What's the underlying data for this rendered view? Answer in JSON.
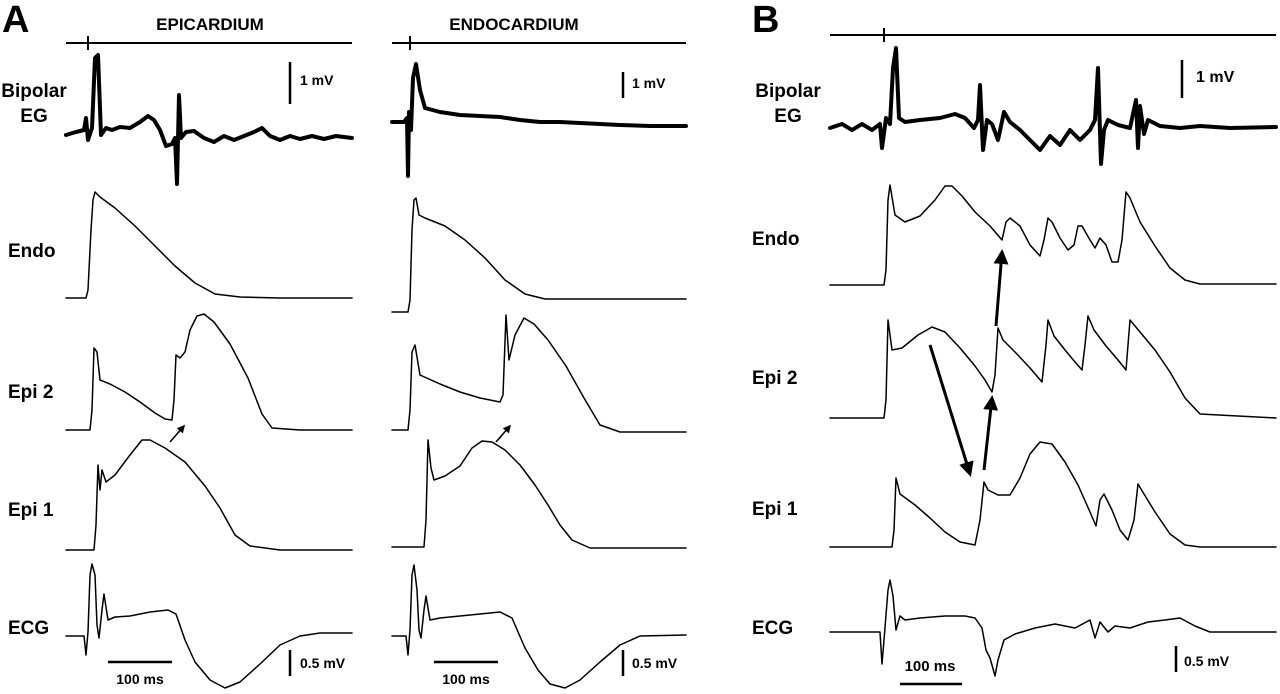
{
  "panels": {
    "A": {
      "letter": "A",
      "epicardium_title": "EPICARDIUM",
      "endocardium_title": "ENDOCARDIUM"
    },
    "B": {
      "letter": "B"
    }
  },
  "row_labels": {
    "bipolar_line1": "Bipolar",
    "bipolar_line2": "EG",
    "endo": "Endo",
    "epi2": "Epi 2",
    "epi1": "Epi 1",
    "ecg": "ECG"
  },
  "scale_bars": {
    "voltage_1mv": "1 mV",
    "voltage_05mv": "0.5 mV",
    "time_100ms": "100 ms"
  }
}
